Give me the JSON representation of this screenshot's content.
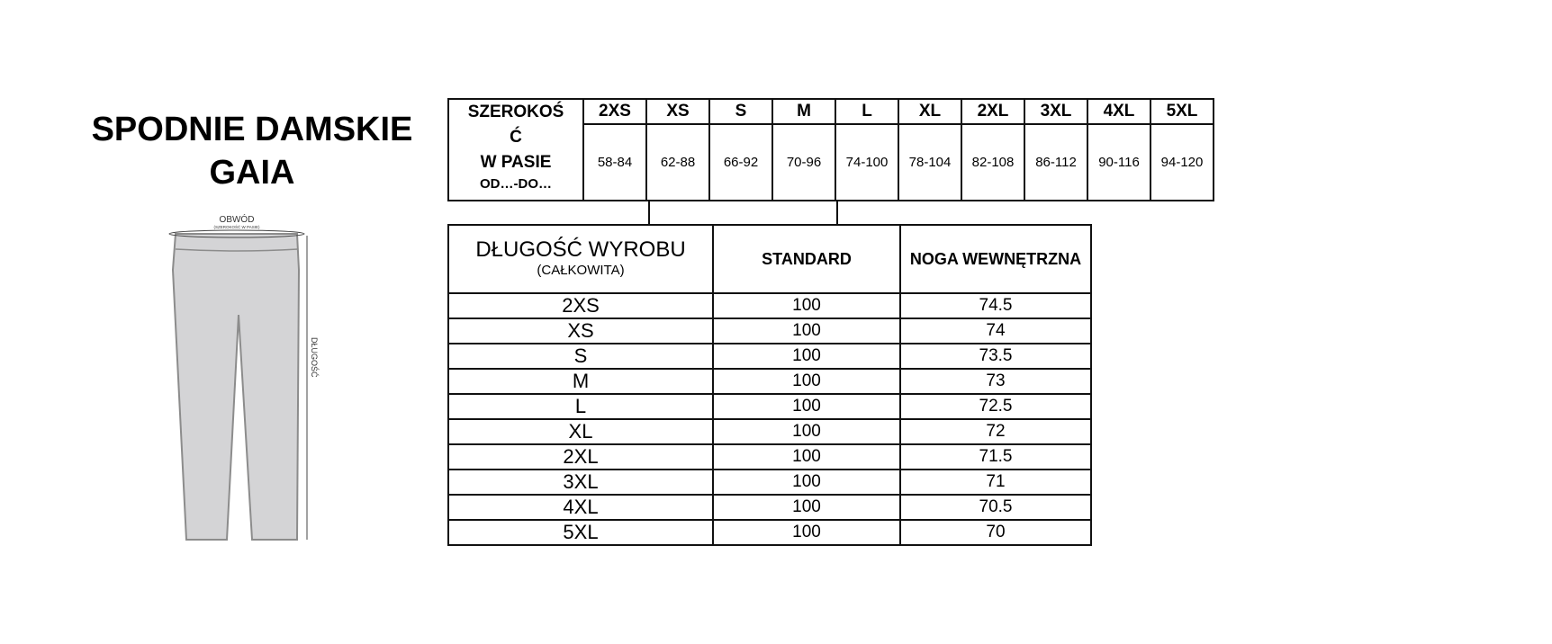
{
  "title": {
    "line1": "SPODNIE DAMSKIE",
    "line2": "GAIA"
  },
  "diagram": {
    "waist_label": "OBWÓD",
    "waist_sublabel": "(SZEROKOŚĆ W PASIE)",
    "length_label": "DŁUGOŚĆ",
    "fill_color": "#d4d4d6",
    "stroke_color": "#8c8c8c"
  },
  "waist_table": {
    "label_line1": "SZEROKOŚ",
    "label_line2": "Ć",
    "label_line3": "W PASIE",
    "label_sub": "OD…-DO…",
    "sizes": [
      "2XS",
      "XS",
      "S",
      "M",
      "L",
      "XL",
      "2XL",
      "3XL",
      "4XL",
      "5XL"
    ],
    "ranges": [
      "58-84",
      "62-88",
      "66-92",
      "70-96",
      "74-100",
      "78-104",
      "82-108",
      "86-112",
      "90-116",
      "94-120"
    ]
  },
  "length_table": {
    "header_main": "DŁUGOŚĆ WYROBU",
    "header_sub": "(CAŁKOWITA)",
    "header_standard": "STANDARD",
    "header_inner": "NOGA WEWNĘTRZNA",
    "rows": [
      {
        "size": "2XS",
        "standard": "100",
        "inner": "74.5"
      },
      {
        "size": "XS",
        "standard": "100",
        "inner": "74"
      },
      {
        "size": "S",
        "standard": "100",
        "inner": "73.5"
      },
      {
        "size": "M",
        "standard": "100",
        "inner": "73"
      },
      {
        "size": "L",
        "standard": "100",
        "inner": "72.5"
      },
      {
        "size": "XL",
        "standard": "100",
        "inner": "72"
      },
      {
        "size": "2XL",
        "standard": "100",
        "inner": "71.5"
      },
      {
        "size": "3XL",
        "standard": "100",
        "inner": "71"
      },
      {
        "size": "4XL",
        "standard": "100",
        "inner": "70.5"
      },
      {
        "size": "5XL",
        "standard": "100",
        "inner": "70"
      }
    ]
  }
}
